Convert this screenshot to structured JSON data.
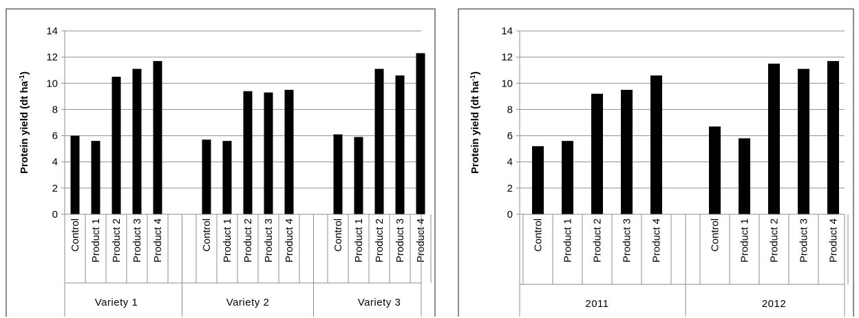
{
  "chart_data": [
    {
      "type": "bar",
      "ylabel": "Protein yield (dt ha",
      "ylabel_sup": "-1",
      "ylabel_close": ")",
      "ylim": [
        0,
        14
      ],
      "yticks": [
        0,
        2,
        4,
        6,
        8,
        10,
        12,
        14
      ],
      "grid": true,
      "groups": [
        {
          "label": "Variety 1",
          "categories": [
            "Control",
            "Product 1",
            "Product 2",
            "Product 3",
            "Product 4"
          ],
          "values": [
            6.0,
            5.6,
            10.5,
            11.1,
            11.7
          ]
        },
        {
          "label": "Variety 2",
          "categories": [
            "Control",
            "Product 1",
            "Product 2",
            "Product 3",
            "Product 4"
          ],
          "values": [
            5.7,
            5.6,
            9.4,
            9.3,
            9.5
          ]
        },
        {
          "label": "Variety 3",
          "categories": [
            "Control",
            "Product 1",
            "Product 2",
            "Product 3",
            "Product 4"
          ],
          "values": [
            6.1,
            5.9,
            11.1,
            10.6,
            12.3
          ]
        }
      ],
      "bar_color": "#000000"
    },
    {
      "type": "bar",
      "ylabel": "Protein  yield (dt ha",
      "ylabel_sup": "-1",
      "ylabel_close": ")",
      "ylim": [
        0,
        14
      ],
      "yticks": [
        0,
        2,
        4,
        6,
        8,
        10,
        12,
        14
      ],
      "grid": true,
      "groups": [
        {
          "label": "2011",
          "categories": [
            "Control",
            "Product 1",
            "Product 2",
            "Product 3",
            "Product 4"
          ],
          "values": [
            5.2,
            5.6,
            9.2,
            9.5,
            10.6
          ]
        },
        {
          "label": "2012",
          "categories": [
            "Control",
            "Product 1",
            "Product 2",
            "Product 3",
            "Product 4"
          ],
          "values": [
            6.7,
            5.8,
            11.5,
            11.1,
            11.7
          ]
        }
      ],
      "bar_color": "#000000"
    }
  ]
}
